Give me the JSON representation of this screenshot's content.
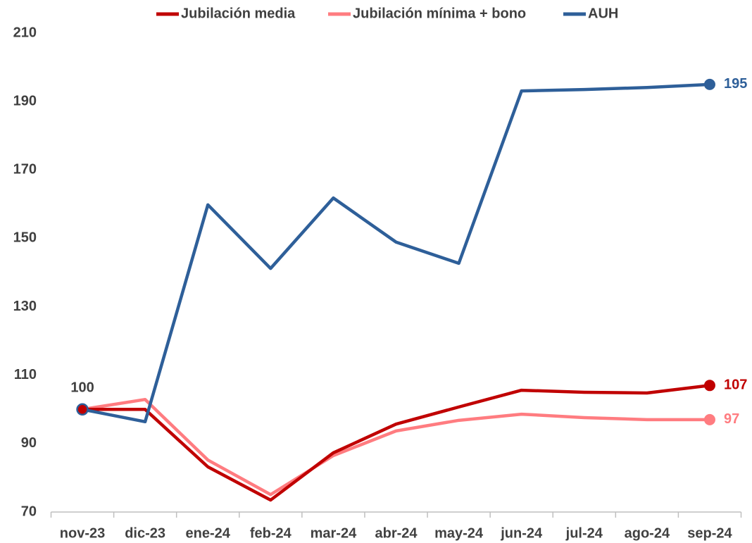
{
  "chart_data": {
    "type": "line",
    "categories": [
      "nov-23",
      "dic-23",
      "ene-24",
      "feb-24",
      "mar-24",
      "abr-24",
      "may-24",
      "jun-24",
      "jul-24",
      "ago-24",
      "sep-24"
    ],
    "series": [
      {
        "name": "Jubilación media",
        "color": "#c00000",
        "values": [
          100,
          100,
          83.2,
          73.5,
          87.3,
          95.7,
          100.7,
          105.6,
          105,
          104.8,
          107
        ]
      },
      {
        "name": "Jubilación mínima + bono",
        "color": "#ff7c80",
        "values": [
          100,
          102.9,
          85.2,
          75.1,
          86.5,
          93.7,
          96.8,
          98.6,
          97.6,
          97,
          97
        ]
      },
      {
        "name": "AUH",
        "color": "#2e5f99",
        "values": [
          100,
          96.4,
          159.8,
          141.2,
          161.8,
          148.9,
          142.7,
          193.1,
          193.5,
          194.1,
          195
        ]
      }
    ],
    "ylim": [
      70,
      210
    ],
    "yticks": [
      70,
      90,
      110,
      130,
      150,
      170,
      190,
      210
    ],
    "grid": false,
    "legend": "top"
  }
}
